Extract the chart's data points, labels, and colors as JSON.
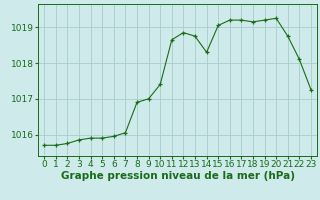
{
  "x": [
    0,
    1,
    2,
    3,
    4,
    5,
    6,
    7,
    8,
    9,
    10,
    11,
    12,
    13,
    14,
    15,
    16,
    17,
    18,
    19,
    20,
    21,
    22,
    23
  ],
  "y": [
    1015.7,
    1015.7,
    1015.75,
    1015.85,
    1015.9,
    1015.9,
    1015.95,
    1016.05,
    1016.9,
    1017.0,
    1017.4,
    1018.65,
    1018.85,
    1018.75,
    1018.3,
    1019.05,
    1019.2,
    1019.2,
    1019.15,
    1019.2,
    1019.25,
    1018.75,
    1018.1,
    1017.25
  ],
  "line_color": "#1a6b1a",
  "marker": "+",
  "marker_color": "#1a6b1a",
  "bg_color": "#ceeaea",
  "grid_color": "#a8cccc",
  "label_color": "#1a6b1a",
  "xlabel": "Graphe pression niveau de la mer (hPa)",
  "yticks": [
    1016,
    1017,
    1018,
    1019
  ],
  "xticks": [
    0,
    1,
    2,
    3,
    4,
    5,
    6,
    7,
    8,
    9,
    10,
    11,
    12,
    13,
    14,
    15,
    16,
    17,
    18,
    19,
    20,
    21,
    22,
    23
  ],
  "ylim": [
    1015.4,
    1019.65
  ],
  "xlim": [
    -0.5,
    23.5
  ],
  "tick_label_fontsize": 6.5,
  "xlabel_fontsize": 7.5
}
